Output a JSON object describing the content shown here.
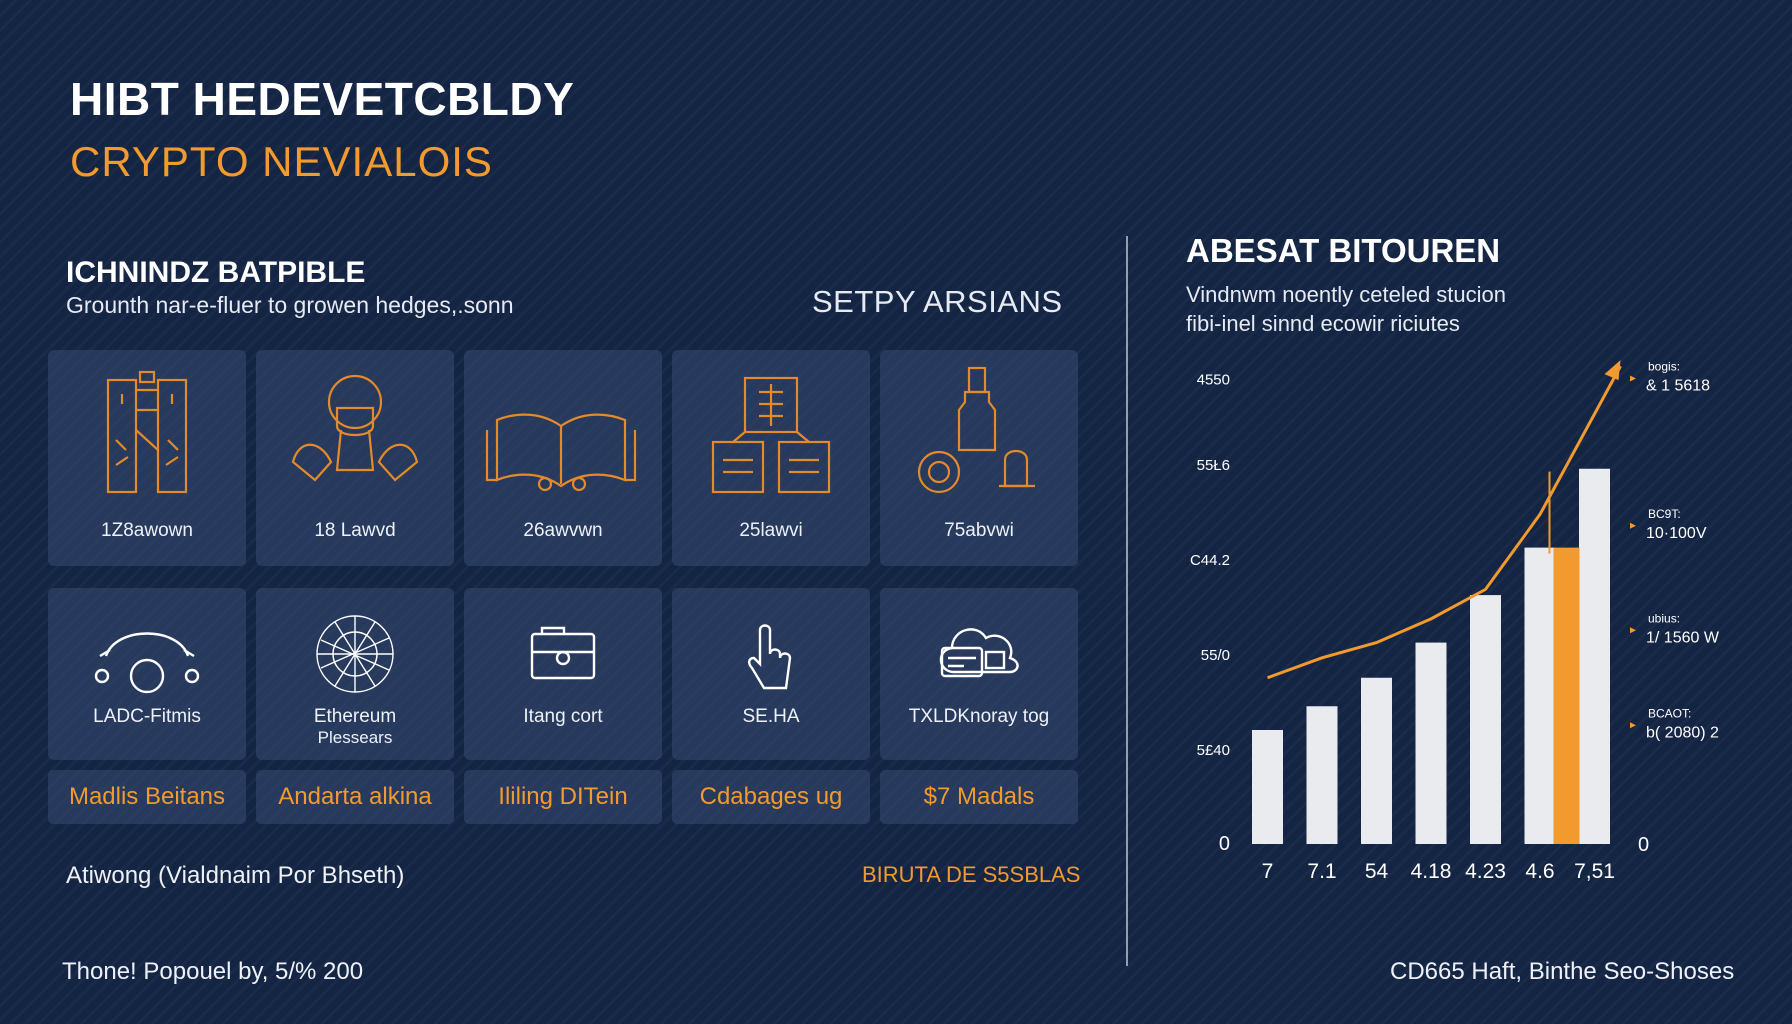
{
  "header": {
    "title": "HIBT HEDEVETCBLDY",
    "subtitle": "CRYPTO NEVIALOIS"
  },
  "section": {
    "title": "ICHNINDZ BATPIBLE",
    "subtitle": "Grounth nar-e-fluer to growen hedges,.sonn",
    "right_label": "SETPY ARSIANS"
  },
  "cards_row1": [
    {
      "icon": "building-icon",
      "label": "1Z8awown"
    },
    {
      "icon": "mask-hands-icon",
      "label": "18 Lawvd"
    },
    {
      "icon": "open-book-icon",
      "label": "26awvwn"
    },
    {
      "icon": "boxes-icon",
      "label": "25lawvi"
    },
    {
      "icon": "bottle-coin-icon",
      "label": "75abvwi"
    }
  ],
  "cards_row2": [
    {
      "icon": "network-nodes-icon",
      "label": "LADC-Fitmis",
      "label2": ""
    },
    {
      "icon": "globe-mesh-icon",
      "label": "Ethereum",
      "label2": "Plessears"
    },
    {
      "icon": "wallet-icon",
      "label": "Itang cort",
      "label2": ""
    },
    {
      "icon": "hand-pointer-icon",
      "label": "SE.HA",
      "label2": ""
    },
    {
      "icon": "cloud-card-icon",
      "label": "TXLDKnoray tog",
      "label2": ""
    }
  ],
  "tags": [
    "Madlis Beitans",
    "Andarta alkina",
    "Ililing DITein",
    "Cdabages ug",
    "$7 Madals"
  ],
  "footer": {
    "left": "Atiwong (Vialdnaim Por Bhseth)",
    "right": "BIRUTA DE S5SBLAS",
    "bottom_left": "Thone! Popouel by, 5/% 200",
    "bottom_right": "CD665 Haft, Binthe Seo-Shoses"
  },
  "chart_header": {
    "title": "ABESAT BITOUREN",
    "desc1": "Vindnwm noently ceteled stucion",
    "desc2": "fibi-inel sinnd ecowir riciutes"
  },
  "colors": {
    "background": "#142544",
    "accent": "#f29a2e",
    "bar": "#e9ebef"
  },
  "chart_data": {
    "type": "bar",
    "categories": [
      "7",
      "7.1",
      "54",
      "4.18",
      "4.23",
      "4.6",
      "7,51"
    ],
    "series": [
      {
        "values": [
          120,
          145,
          175,
          212,
          262,
          312,
          395
        ]
      }
    ],
    "highlight": {
      "category": "4.6",
      "value": 312,
      "color": "#f29a2e"
    },
    "trend_line": [
      175,
      196,
      212,
      237,
      268,
      347,
      503
    ],
    "y_ticks_left": [
      "0",
      "5£40",
      "55/0",
      "C44.2",
      "55Ł6",
      "4550"
    ],
    "y_tick_left_values": [
      0,
      100,
      200,
      300,
      400,
      490
    ],
    "y_tick_right": "0",
    "right_annotations": [
      {
        "line1": "bogis:",
        "line2": "& 1 5618",
        "value": 490
      },
      {
        "line1": "BC9T:",
        "line2": "10·100V",
        "value": 335
      },
      {
        "line1": "ubius:",
        "line2": "1/ 1560 W",
        "value": 225
      },
      {
        "line1": "BCAOT:",
        "line2": "b( 2080) 2",
        "value": 125
      }
    ],
    "ylim": [
      0,
      520
    ]
  }
}
